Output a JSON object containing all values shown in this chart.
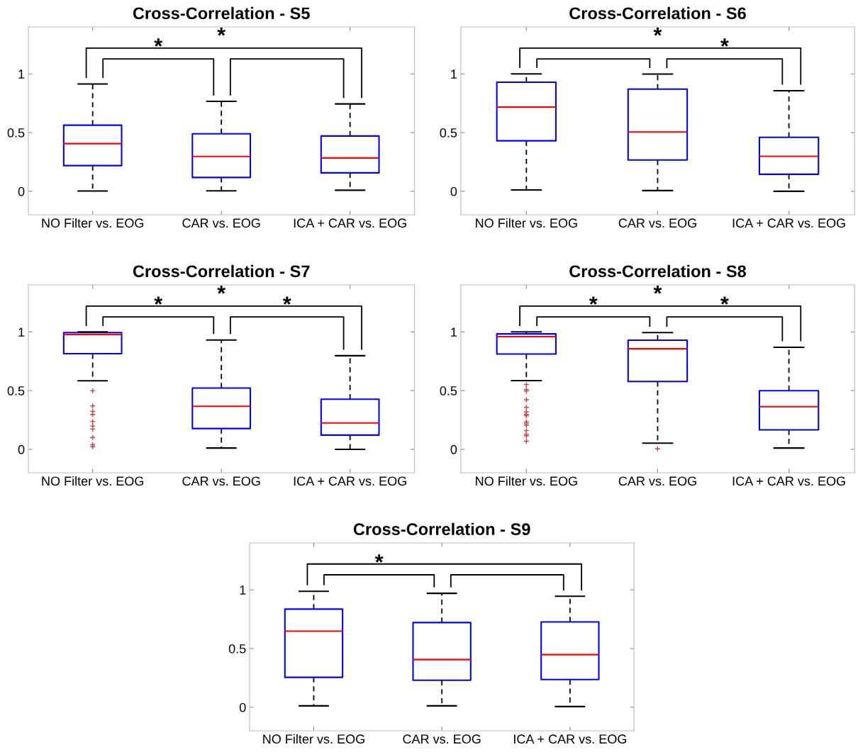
{
  "chart_data": [
    {
      "type": "box",
      "title": "Cross-Correlation - S5",
      "categories": [
        "NO Filter vs. EOG",
        "CAR vs. EOG",
        "ICA + CAR vs. EOG"
      ],
      "ylim": [
        -0.2,
        1.4
      ],
      "yticks": [
        0,
        0.5,
        1
      ],
      "boxes": [
        {
          "low": 0.002,
          "q1": 0.219,
          "median": 0.406,
          "q3": 0.563,
          "high": 0.914
        },
        {
          "low": 0.004,
          "q1": 0.118,
          "median": 0.297,
          "q3": 0.49,
          "high": 0.766
        },
        {
          "low": 0.009,
          "q1": 0.157,
          "median": 0.284,
          "q3": 0.471,
          "high": 0.744
        }
      ],
      "annotations": [
        "*",
        null,
        "*"
      ]
    },
    {
      "type": "box",
      "title": "Cross-Correlation - S6",
      "categories": [
        "NO Filter vs. EOG",
        "CAR vs. EOG",
        "ICA + CAR vs. EOG"
      ],
      "ylim": [
        -0.2,
        1.4
      ],
      "yticks": [
        0,
        0.5,
        1
      ],
      "boxes": [
        {
          "low": 0.011,
          "q1": 0.43,
          "median": 0.717,
          "q3": 0.929,
          "high": 1.0
        },
        {
          "low": 0.006,
          "q1": 0.266,
          "median": 0.505,
          "q3": 0.87,
          "high": 0.998
        },
        {
          "low": 0.0,
          "q1": 0.145,
          "median": 0.298,
          "q3": 0.46,
          "high": 0.857
        }
      ],
      "annotations": [
        null,
        "*",
        "*"
      ]
    },
    {
      "type": "box",
      "title": "Cross-Correlation - S7",
      "categories": [
        "NO Filter vs. EOG",
        "CAR vs. EOG",
        "ICA + CAR vs. EOG"
      ],
      "ylim": [
        -0.2,
        1.4
      ],
      "yticks": [
        0,
        0.5,
        1
      ],
      "marker": "cross",
      "boxes": [
        {
          "low": 0.584,
          "q1": 0.815,
          "median": 0.978,
          "q3": 0.994,
          "high": 1.0,
          "outliers": [
            0.498,
            0.369,
            0.323,
            0.297,
            0.237,
            0.198,
            0.172,
            0.101,
            0.039,
            0.022
          ]
        },
        {
          "low": 0.011,
          "q1": 0.177,
          "median": 0.366,
          "q3": 0.522,
          "high": 0.931
        },
        {
          "low": 0.0,
          "q1": 0.121,
          "median": 0.224,
          "q3": 0.427,
          "high": 0.797
        }
      ],
      "annotations": [
        "*",
        "*",
        "*"
      ]
    },
    {
      "type": "box",
      "title": "Cross-Correlation - S8",
      "categories": [
        "NO Filter vs. EOG",
        "CAR vs. EOG",
        "ICA + CAR vs. EOG"
      ],
      "ylim": [
        -0.2,
        1.4
      ],
      "yticks": [
        0,
        0.5,
        1
      ],
      "marker": "cross",
      "boxes": [
        {
          "low": 0.585,
          "q1": 0.811,
          "median": 0.959,
          "q3": 0.983,
          "high": 1.0,
          "outliers": [
            0.551,
            0.508,
            0.495,
            0.422,
            0.357,
            0.318,
            0.297,
            0.286,
            0.234,
            0.222,
            0.206,
            0.159,
            0.127,
            0.116,
            0.069
          ]
        },
        {
          "low": 0.052,
          "q1": 0.578,
          "median": 0.856,
          "q3": 0.929,
          "high": 0.994,
          "outliers": [
            0.004
          ]
        },
        {
          "low": 0.011,
          "q1": 0.166,
          "median": 0.363,
          "q3": 0.499,
          "high": 0.869
        }
      ],
      "annotations": [
        "*",
        "*",
        "*"
      ]
    },
    {
      "type": "box",
      "title": "Cross-Correlation - S9",
      "categories": [
        "NO Filter vs. EOG",
        "CAR vs. EOG",
        "ICA + CAR vs. EOG"
      ],
      "ylim": [
        -0.2,
        1.4
      ],
      "yticks": [
        0,
        0.5,
        1
      ],
      "boxes": [
        {
          "low": 0.012,
          "q1": 0.255,
          "median": 0.648,
          "q3": 0.836,
          "high": 0.988
        },
        {
          "low": 0.012,
          "q1": 0.23,
          "median": 0.406,
          "q3": 0.721,
          "high": 0.97
        },
        {
          "low": 0.006,
          "q1": 0.236,
          "median": 0.448,
          "q3": 0.727,
          "high": 0.945
        }
      ],
      "annotations": [
        "*",
        null,
        null
      ]
    }
  ]
}
